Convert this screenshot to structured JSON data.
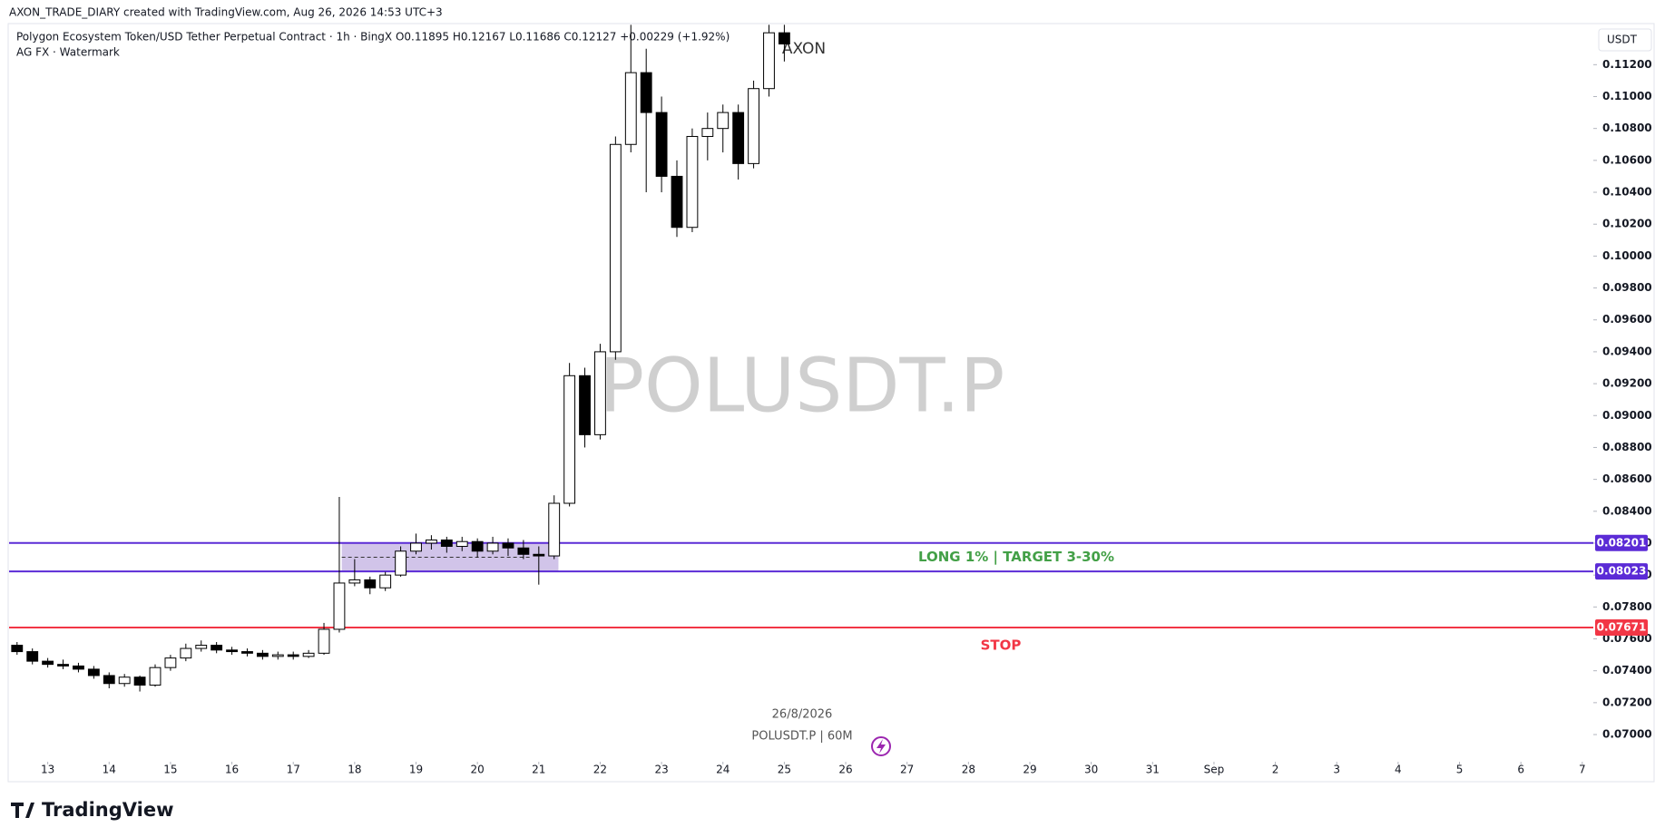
{
  "header": {
    "credit": "AXON_TRADE_DIARY created with TradingView.com, Aug 26, 2026 14:53 UTC+3",
    "currency": "USDT",
    "brand": "TradingView"
  },
  "chart_data": {
    "type": "candlestick",
    "legend_text": "Polygon Ecosystem Token/USD Tether Perpetual Contract · 1h · BingX  O0.11895 H0.12167 L0.11686 C0.12127 +0.00229 (+1.92%)",
    "indicator_text": "AG FX · Watermark",
    "watermark": "POLUSDT.P",
    "author_tag": "AXON",
    "date_text": "26/8/2026",
    "symbol_text": "POLUSDT.P | 60M",
    "up_color": "#ffffff",
    "down_color": "#000000",
    "wick_color": "#000000",
    "x": [
      -0.5,
      -0.25,
      0,
      0.25,
      0.5,
      0.75,
      1,
      1.25,
      1.5,
      1.75,
      2,
      2.25,
      2.5,
      2.75,
      3,
      3.25,
      3.5,
      3.75,
      4,
      4.25,
      4.5,
      4.75,
      5,
      5.25,
      5.5,
      5.75,
      6,
      6.25,
      6.5,
      6.75,
      7,
      7.25,
      7.5,
      7.75,
      8,
      8.25,
      8.5,
      8.75,
      9,
      9.25,
      9.5,
      9.75,
      10,
      10.25,
      10.5,
      10.75,
      11,
      11.25,
      11.5,
      11.75,
      12
    ],
    "open": [
      0.0756,
      0.0752,
      0.0746,
      0.0744,
      0.0743,
      0.0741,
      0.0737,
      0.0732,
      0.0736,
      0.0731,
      0.0742,
      0.0748,
      0.0754,
      0.0756,
      0.0753,
      0.0752,
      0.0751,
      0.0749,
      0.075,
      0.0749,
      0.0751,
      0.0766,
      0.0795,
      0.0797,
      0.0792,
      0.08,
      0.0815,
      0.082,
      0.0822,
      0.0818,
      0.0821,
      0.0815,
      0.082,
      0.0817,
      0.0813,
      0.0812,
      0.0845,
      0.0925,
      0.0888,
      0.094,
      0.107,
      0.1115,
      0.109,
      0.105,
      0.1018,
      0.1075,
      0.108,
      0.109,
      0.1058,
      0.1105,
      0.114
    ],
    "high": [
      0.0758,
      0.0754,
      0.0748,
      0.0747,
      0.0745,
      0.0743,
      0.0739,
      0.0738,
      0.0737,
      0.0744,
      0.075,
      0.0757,
      0.0759,
      0.0758,
      0.0755,
      0.0754,
      0.0753,
      0.0752,
      0.0752,
      0.0753,
      0.077,
      0.0849,
      0.081,
      0.0799,
      0.0802,
      0.0818,
      0.0826,
      0.0825,
      0.0824,
      0.0824,
      0.0823,
      0.0824,
      0.0823,
      0.0822,
      0.0818,
      0.085,
      0.0933,
      0.093,
      0.0945,
      0.1075,
      0.1145,
      0.113,
      0.11,
      0.106,
      0.108,
      0.109,
      0.1095,
      0.1095,
      0.111,
      0.1145,
      0.1145
    ],
    "low": [
      0.075,
      0.0744,
      0.0742,
      0.0741,
      0.0739,
      0.0735,
      0.0729,
      0.073,
      0.0727,
      0.073,
      0.074,
      0.0746,
      0.0752,
      0.0751,
      0.075,
      0.0749,
      0.0747,
      0.0747,
      0.0747,
      0.0748,
      0.075,
      0.0764,
      0.0793,
      0.0788,
      0.079,
      0.0799,
      0.0813,
      0.0816,
      0.0814,
      0.0815,
      0.0811,
      0.0813,
      0.0812,
      0.081,
      0.0794,
      0.081,
      0.0843,
      0.088,
      0.0885,
      0.0935,
      0.1065,
      0.104,
      0.104,
      0.1012,
      0.1015,
      0.106,
      0.1065,
      0.1048,
      0.1055,
      0.11,
      0.1122
    ],
    "close": [
      0.0752,
      0.0746,
      0.0744,
      0.0743,
      0.0741,
      0.0737,
      0.0732,
      0.0736,
      0.0731,
      0.0742,
      0.0748,
      0.0754,
      0.0756,
      0.0753,
      0.0752,
      0.0751,
      0.0749,
      0.075,
      0.0749,
      0.0751,
      0.0766,
      0.0795,
      0.0797,
      0.0792,
      0.08,
      0.0815,
      0.082,
      0.0822,
      0.0818,
      0.0821,
      0.0815,
      0.082,
      0.0817,
      0.0813,
      0.0812,
      0.0845,
      0.0925,
      0.0888,
      0.094,
      0.107,
      0.1115,
      0.109,
      0.105,
      0.1018,
      0.1075,
      0.108,
      0.109,
      0.1058,
      0.1105,
      0.114,
      0.1133
    ],
    "xlim": [
      -0.63,
      25.18
    ],
    "ylim": [
      0.06841,
      0.11452
    ],
    "xticks": [
      {
        "value": 0,
        "label": "13"
      },
      {
        "value": 1,
        "label": "14"
      },
      {
        "value": 2,
        "label": "15"
      },
      {
        "value": 3,
        "label": "16"
      },
      {
        "value": 4,
        "label": "17"
      },
      {
        "value": 5,
        "label": "18"
      },
      {
        "value": 6,
        "label": "19"
      },
      {
        "value": 7,
        "label": "20"
      },
      {
        "value": 8,
        "label": "21"
      },
      {
        "value": 9,
        "label": "22"
      },
      {
        "value": 10,
        "label": "23"
      },
      {
        "value": 11,
        "label": "24"
      },
      {
        "value": 12,
        "label": "25"
      },
      {
        "value": 13,
        "label": "26"
      },
      {
        "value": 14,
        "label": "27"
      },
      {
        "value": 15,
        "label": "28"
      },
      {
        "value": 16,
        "label": "29"
      },
      {
        "value": 17,
        "label": "30"
      },
      {
        "value": 18,
        "label": "31"
      },
      {
        "value": 19,
        "label": "Sep"
      },
      {
        "value": 20,
        "label": "2"
      },
      {
        "value": 21,
        "label": "3"
      },
      {
        "value": 22,
        "label": "4"
      },
      {
        "value": 23,
        "label": "5"
      },
      {
        "value": 24,
        "label": "6"
      },
      {
        "value": 25,
        "label": "7"
      }
    ],
    "yticks": [
      {
        "value": 0.07,
        "label": "0.07000"
      },
      {
        "value": 0.072,
        "label": "0.07200"
      },
      {
        "value": 0.074,
        "label": "0.07400"
      },
      {
        "value": 0.076,
        "label": "0.07600"
      },
      {
        "value": 0.078,
        "label": "0.07800"
      },
      {
        "value": 0.08,
        "label": "0.08000"
      },
      {
        "value": 0.082,
        "label": "0.08200"
      },
      {
        "value": 0.084,
        "label": "0.08400"
      },
      {
        "value": 0.086,
        "label": "0.08600"
      },
      {
        "value": 0.088,
        "label": "0.08800"
      },
      {
        "value": 0.09,
        "label": "0.09000"
      },
      {
        "value": 0.092,
        "label": "0.09200"
      },
      {
        "value": 0.094,
        "label": "0.09400"
      },
      {
        "value": 0.096,
        "label": "0.09600"
      },
      {
        "value": 0.098,
        "label": "0.09800"
      },
      {
        "value": 0.1,
        "label": "0.10000"
      },
      {
        "value": 0.102,
        "label": "0.10200"
      },
      {
        "value": 0.104,
        "label": "0.10400"
      },
      {
        "value": 0.106,
        "label": "0.10600"
      },
      {
        "value": 0.108,
        "label": "0.10800"
      },
      {
        "value": 0.11,
        "label": "0.11000"
      },
      {
        "value": 0.112,
        "label": "0.11200"
      }
    ],
    "grid": false,
    "hlines": [
      {
        "value": 0.08201,
        "color": "#5b2bd6"
      },
      {
        "value": 0.08023,
        "color": "#5b2bd6"
      },
      {
        "value": 0.07671,
        "color": "#f23645"
      }
    ],
    "zone": {
      "x": [
        4.79,
        8.32
      ],
      "y": [
        0.08023,
        0.08201
      ],
      "color": "#b39ddb"
    },
    "annotations": [
      {
        "text": "LONG 1% | TARGET 3-30%",
        "color": "#43a047"
      },
      {
        "text": "STOP",
        "color": "#f23645"
      }
    ]
  }
}
